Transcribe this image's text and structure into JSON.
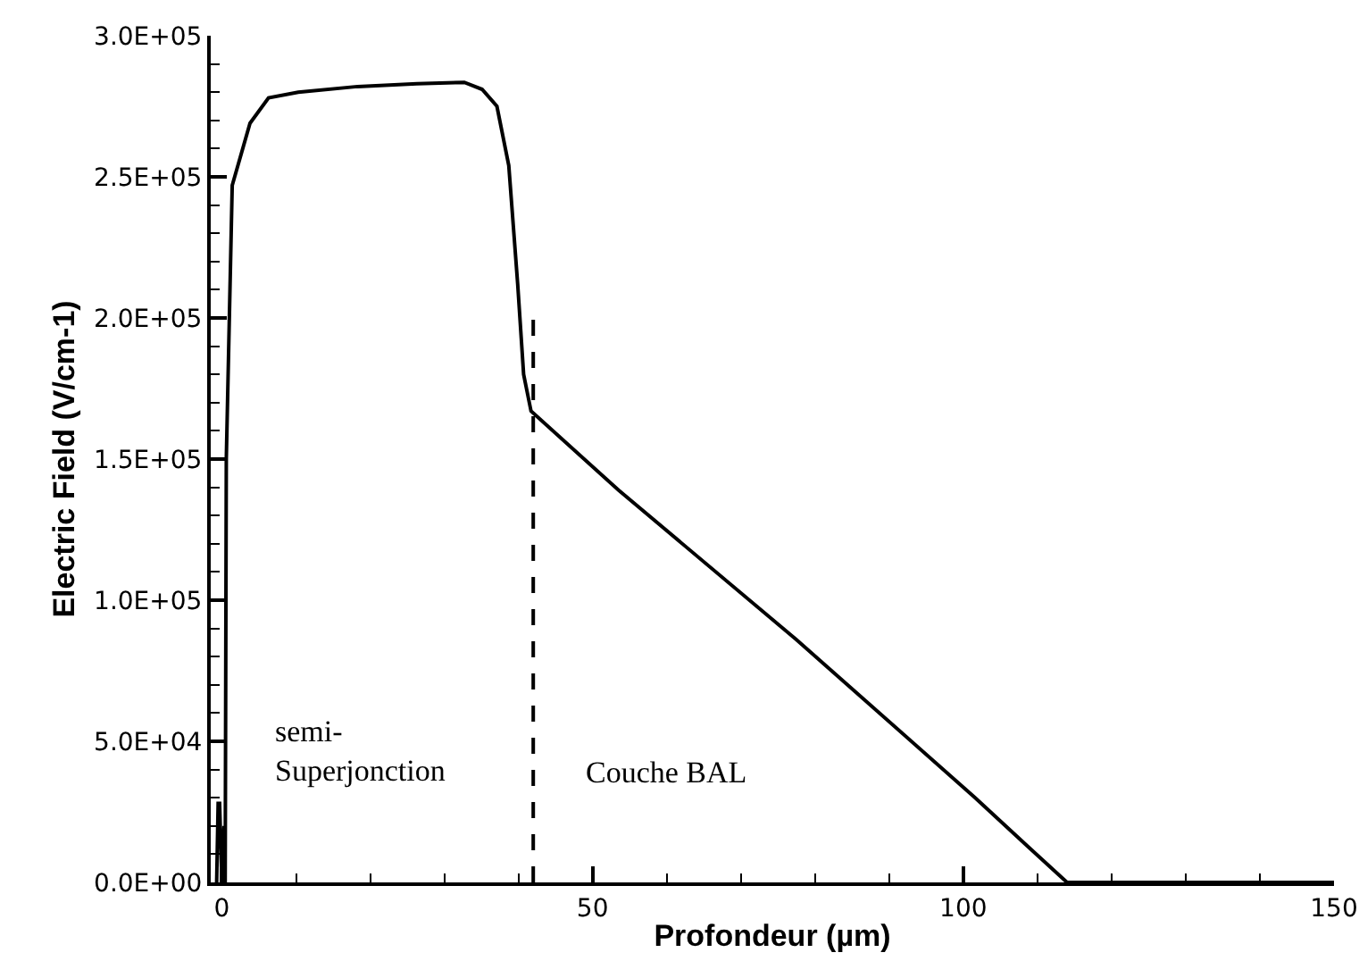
{
  "chart_data": {
    "type": "line",
    "xlabel": "Profondeur (µm)",
    "ylabel": "Electric Field (V/cm-1)",
    "xlim": [
      -1.5,
      150
    ],
    "ylim": [
      0,
      300000
    ],
    "xticks": [
      0,
      50,
      100,
      150
    ],
    "yticks": [
      {
        "value": 0,
        "label": "0.0E+00"
      },
      {
        "value": 50000,
        "label": "5.0E+04"
      },
      {
        "value": 100000,
        "label": "1.0E+05"
      },
      {
        "value": 150000,
        "label": "1.5E+05"
      },
      {
        "value": 200000,
        "label": "2.0E+05"
      },
      {
        "value": 250000,
        "label": "2.5E+05"
      },
      {
        "value": 300000,
        "label": "3.0E+05"
      }
    ],
    "marker": "none",
    "series": [
      {
        "color": "#000000",
        "line_style": "solid",
        "x": [
          -0.7,
          -0.5,
          -0.3,
          0,
          0.3,
          0.45,
          0.6,
          1.4,
          3.8,
          6.3,
          10.3,
          18.3,
          26.3,
          32.7,
          35.1,
          37.1,
          38.7,
          39.9,
          40.7,
          41.7,
          53.5,
          77.5,
          101.6,
          108.8,
          114,
          145,
          150
        ],
        "values": [
          0,
          28000,
          28000,
          0,
          20000,
          0,
          150000,
          247000,
          269000,
          278000,
          280000,
          282000,
          283000,
          283500,
          281000,
          275000,
          254000,
          212000,
          180000,
          167000,
          139000,
          86000,
          30000,
          12500,
          0,
          0,
          0
        ]
      },
      {
        "color": "#000000",
        "line_style": "dashed",
        "x": [
          42,
          42
        ],
        "values": [
          0,
          200000
        ]
      }
    ],
    "annotations": [
      "semi-\nSuperjonction",
      "Couche BAL"
    ]
  }
}
